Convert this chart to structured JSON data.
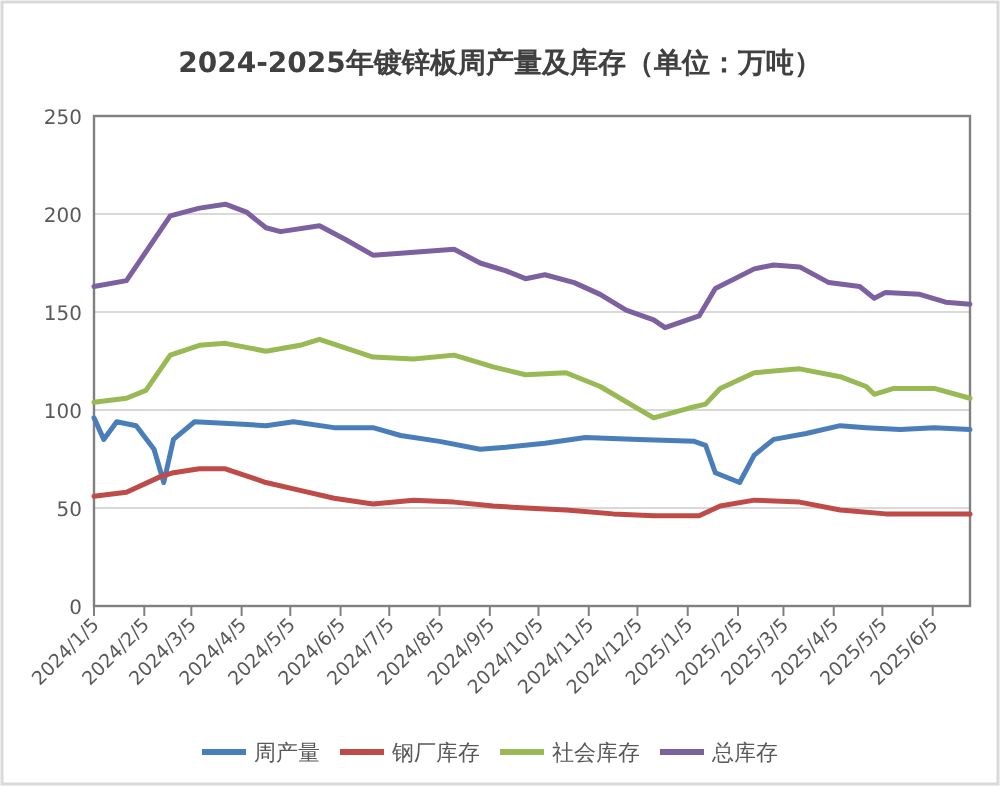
{
  "chart_data": {
    "type": "line",
    "title": "2024-2025年镀锌板周产量及库存（单位：万吨）",
    "xlim": [
      "2024-01-05",
      "2025-06-28"
    ],
    "xticks": [
      {
        "value": "2024-01-05",
        "label": "2024/1/5"
      },
      {
        "value": "2024-02-05",
        "label": "2024/2/5"
      },
      {
        "value": "2024-03-05",
        "label": "2024/3/5"
      },
      {
        "value": "2024-04-05",
        "label": "2024/4/5"
      },
      {
        "value": "2024-05-05",
        "label": "2024/5/5"
      },
      {
        "value": "2024-06-05",
        "label": "2024/6/5"
      },
      {
        "value": "2024-07-05",
        "label": "2024/7/5"
      },
      {
        "value": "2024-08-05",
        "label": "2024/8/5"
      },
      {
        "value": "2024-09-05",
        "label": "2024/9/5"
      },
      {
        "value": "2024-10-05",
        "label": "2024/10/5"
      },
      {
        "value": "2024-11-05",
        "label": "2024/11/5"
      },
      {
        "value": "2024-12-05",
        "label": "2024/12/5"
      },
      {
        "value": "2025-01-05",
        "label": "2025/1/5"
      },
      {
        "value": "2025-02-05",
        "label": "2025/2/5"
      },
      {
        "value": "2025-03-05",
        "label": "2025/3/5"
      },
      {
        "value": "2025-04-05",
        "label": "2025/4/5"
      },
      {
        "value": "2025-05-05",
        "label": "2025/5/5"
      },
      {
        "value": "2025-06-05",
        "label": "2025/6/5"
      }
    ],
    "ylim": [
      0,
      250
    ],
    "yticks": [
      0,
      50,
      100,
      150,
      200,
      250
    ],
    "grid": "y",
    "legend": "bottom",
    "marker": "none",
    "line_style": "solid",
    "series": [
      {
        "name": "周产量",
        "color": "#4a7ebb",
        "x": [
          "2024-01-05",
          "2024-01-11",
          "2024-01-19",
          "2024-01-31",
          "2024-02-11",
          "2024-02-17",
          "2024-02-23",
          "2024-03-07",
          "2024-03-31",
          "2024-04-20",
          "2024-05-07",
          "2024-06-01",
          "2024-06-25",
          "2024-07-12",
          "2024-08-05",
          "2024-08-30",
          "2024-09-15",
          "2024-10-09",
          "2024-11-03",
          "2024-12-06",
          "2025-01-09",
          "2025-01-16",
          "2025-01-22",
          "2025-02-06",
          "2025-02-15",
          "2025-02-27",
          "2025-03-19",
          "2025-04-09",
          "2025-04-25",
          "2025-05-16",
          "2025-06-06",
          "2025-06-28"
        ],
        "values": [
          96,
          85,
          94,
          92,
          80,
          63,
          85,
          94,
          93,
          92,
          94,
          91,
          91,
          87,
          84,
          80,
          81,
          83,
          86,
          85,
          84,
          82,
          68,
          63,
          77,
          85,
          88,
          92,
          91,
          90,
          91,
          90
        ]
      },
      {
        "name": "钢厂库存",
        "color": "#be4b48",
        "x": [
          "2024-01-05",
          "2024-01-25",
          "2024-02-15",
          "2024-02-23",
          "2024-03-10",
          "2024-03-26",
          "2024-04-20",
          "2024-05-11",
          "2024-06-01",
          "2024-06-25",
          "2024-07-20",
          "2024-08-14",
          "2024-09-07",
          "2024-09-27",
          "2024-10-22",
          "2024-11-20",
          "2024-12-15",
          "2025-01-12",
          "2025-01-25",
          "2025-02-15",
          "2025-03-15",
          "2025-04-09",
          "2025-05-07",
          "2025-06-06",
          "2025-06-28"
        ],
        "values": [
          56,
          58,
          66,
          68,
          70,
          70,
          63,
          59,
          55,
          52,
          54,
          53,
          51,
          50,
          49,
          47,
          46,
          46,
          51,
          54,
          53,
          49,
          47,
          47,
          47
        ]
      },
      {
        "name": "社会库存",
        "color": "#98b954",
        "x": [
          "2024-01-05",
          "2024-01-25",
          "2024-02-06",
          "2024-02-21",
          "2024-03-10",
          "2024-03-26",
          "2024-04-20",
          "2024-05-11",
          "2024-05-23",
          "2024-06-25",
          "2024-07-20",
          "2024-08-14",
          "2024-09-07",
          "2024-09-27",
          "2024-10-22",
          "2024-11-12",
          "2024-12-15",
          "2025-01-06",
          "2025-01-16",
          "2025-01-25",
          "2025-02-15",
          "2025-03-15",
          "2025-04-09",
          "2025-04-25",
          "2025-04-30",
          "2025-05-12",
          "2025-06-06",
          "2025-06-28"
        ],
        "values": [
          104,
          106,
          110,
          128,
          133,
          134,
          130,
          133,
          136,
          127,
          126,
          128,
          122,
          118,
          119,
          112,
          96,
          101,
          103,
          111,
          119,
          121,
          117,
          112,
          108,
          111,
          111,
          106
        ]
      },
      {
        "name": "总库存",
        "color": "#7d60a0",
        "x": [
          "2024-01-05",
          "2024-01-25",
          "2024-02-21",
          "2024-03-10",
          "2024-03-26",
          "2024-04-08",
          "2024-04-20",
          "2024-04-29",
          "2024-05-23",
          "2024-06-08",
          "2024-06-25",
          "2024-07-12",
          "2024-08-14",
          "2024-08-30",
          "2024-09-15",
          "2024-09-27",
          "2024-10-09",
          "2024-10-27",
          "2024-11-12",
          "2024-11-28",
          "2024-12-15",
          "2024-12-22",
          "2025-01-12",
          "2025-01-22",
          "2025-02-15",
          "2025-02-27",
          "2025-03-15",
          "2025-04-02",
          "2025-04-21",
          "2025-04-30",
          "2025-05-07",
          "2025-05-28",
          "2025-06-13",
          "2025-06-28"
        ],
        "values": [
          163,
          166,
          199,
          203,
          205,
          201,
          193,
          191,
          194,
          187,
          179,
          180,
          182,
          175,
          171,
          167,
          169,
          165,
          159,
          151,
          146,
          142,
          148,
          162,
          172,
          174,
          173,
          165,
          163,
          157,
          160,
          159,
          155,
          154
        ]
      }
    ]
  }
}
